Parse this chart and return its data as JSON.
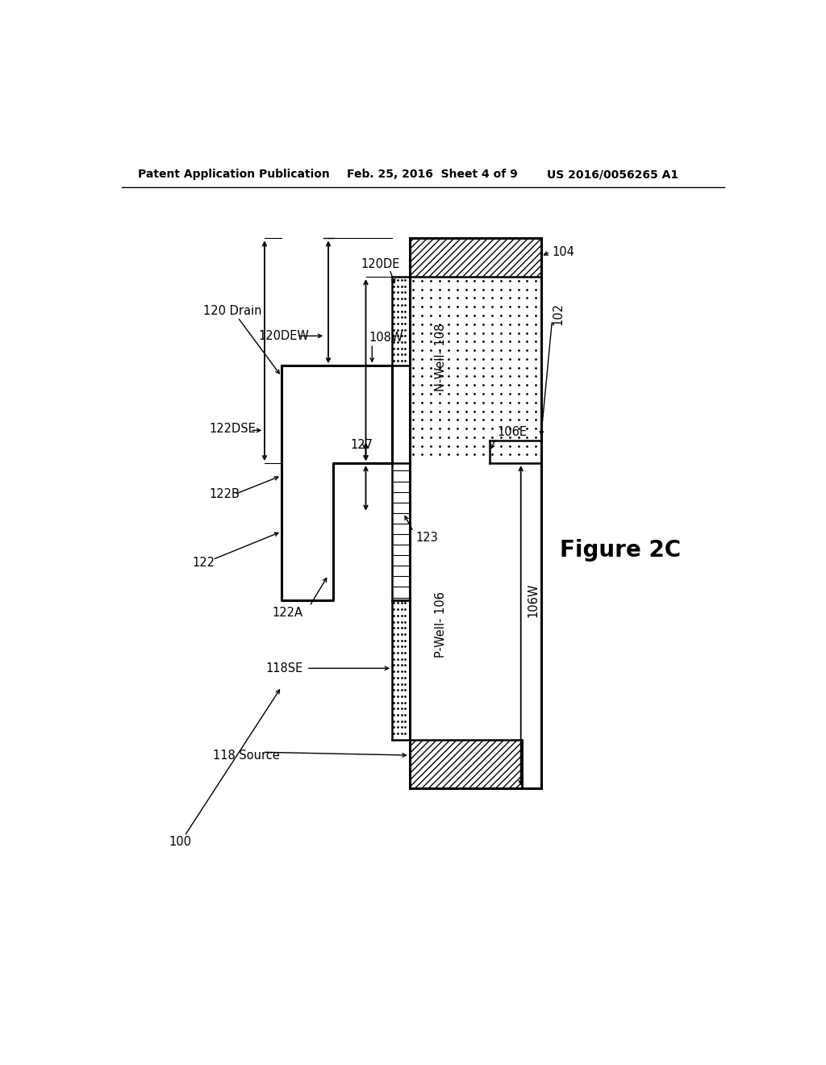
{
  "bg_color": "#ffffff",
  "header_left": "Patent Application Publication",
  "header_mid": "Feb. 25, 2016  Sheet 4 of 9",
  "header_right": "US 2016/0056265 A1",
  "figure_label": "Figure 2C"
}
